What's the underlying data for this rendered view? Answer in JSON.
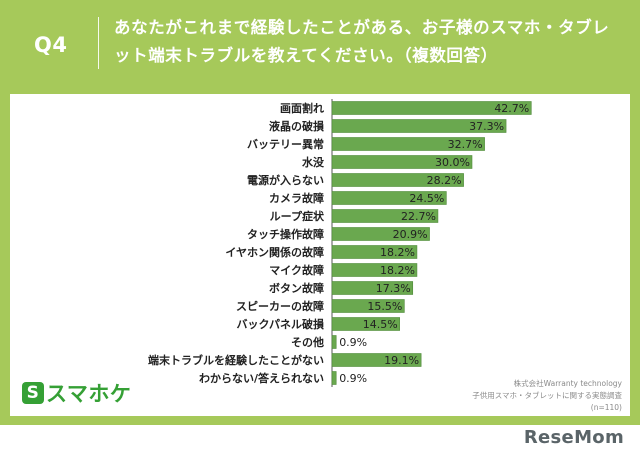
{
  "header": {
    "q_label": "Q4",
    "question": "あなたがこれまで経験したことがある、お子様のスマホ・タブレット端末トラブルを教えてください。（複数回答）"
  },
  "branding": {
    "logo_text": "スマホケ",
    "logo_icon_glyph": "S",
    "watermark": "ReseMom"
  },
  "source": {
    "line1": "株式会社Warranty technology",
    "line2": "子供用スマホ・タブレットに関する実態調査",
    "line3": "(n=110)"
  },
  "colors": {
    "frame": "#a6c95a",
    "bar": "#6aa84f",
    "bar_border": "#4f8a3a",
    "logo": "#35a035"
  },
  "chart_data": {
    "type": "bar",
    "orientation": "horizontal",
    "categories": [
      "画面割れ",
      "液晶の破損",
      "バッテリー異常",
      "水没",
      "電源が入らない",
      "カメラ故障",
      "ループ症状",
      "タッチ操作故障",
      "イヤホン関係の故障",
      "マイク故障",
      "ボタン故障",
      "スピーカーの故障",
      "バックパネル破損",
      "その他",
      "端末トラブルを経験したことがない",
      "わからない/答えられない"
    ],
    "values": [
      42.7,
      37.3,
      32.7,
      30.0,
      28.2,
      24.5,
      22.7,
      20.9,
      18.2,
      18.2,
      17.3,
      15.5,
      14.5,
      0.9,
      19.1,
      0.9
    ],
    "data_labels": [
      "42.7%",
      "37.3%",
      "32.7%",
      "30.0%",
      "28.2%",
      "24.5%",
      "22.7%",
      "20.9%",
      "18.2%",
      "18.2%",
      "17.3%",
      "15.5%",
      "14.5%",
      "0.9%",
      "19.1%",
      "0.9%"
    ],
    "unit": "%",
    "xlim": [
      0,
      60
    ],
    "grid": false,
    "legend": "none"
  }
}
